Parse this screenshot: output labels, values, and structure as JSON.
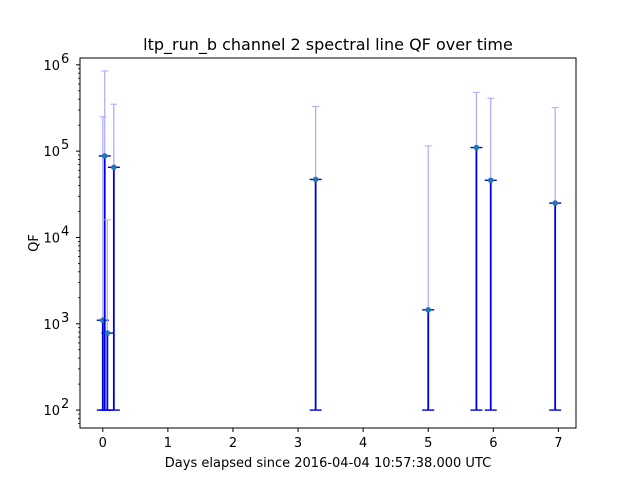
{
  "chart_data": {
    "type": "scatter",
    "title": "ltp_run_b channel 2 spectral line QF over time",
    "xlabel": "Days elapsed since 2016-04-04 10:57:38.000 UTC",
    "ylabel": "QF",
    "yscale": "log",
    "xlim": [
      -0.35,
      7.27
    ],
    "ylim": [
      62,
      1200000
    ],
    "x_ticks": [
      0,
      1,
      2,
      3,
      4,
      5,
      6,
      7
    ],
    "x_tick_labels": [
      "0",
      "1",
      "2",
      "3",
      "4",
      "5",
      "6",
      "7"
    ],
    "y_ticks": [
      100,
      1000,
      10000,
      100000,
      1000000
    ],
    "y_tick_labels": [
      "10",
      "10",
      "10",
      "10",
      "10"
    ],
    "y_tick_exponents": [
      "2",
      "3",
      "4",
      "5",
      "6"
    ],
    "grid": false,
    "marker_color": "#1f77b4",
    "lower_error_color": "#0000dd",
    "upper_error_color": "#aaaaff",
    "points": [
      {
        "x": 0.0,
        "y": 1100,
        "y_low": 100,
        "y_high": 250000
      },
      {
        "x": 0.03,
        "y": 88000,
        "y_low": 100,
        "y_high": 850000
      },
      {
        "x": 0.07,
        "y": 780,
        "y_low": 100,
        "y_high": 16000
      },
      {
        "x": 0.17,
        "y": 65000,
        "y_low": 100,
        "y_high": 350000
      },
      {
        "x": 3.27,
        "y": 47000,
        "y_low": 100,
        "y_high": 330000
      },
      {
        "x": 5.0,
        "y": 1450,
        "y_low": 100,
        "y_high": 115000
      },
      {
        "x": 5.74,
        "y": 110000,
        "y_low": 100,
        "y_high": 480000
      },
      {
        "x": 5.96,
        "y": 46000,
        "y_low": 100,
        "y_high": 410000
      },
      {
        "x": 6.95,
        "y": 25000,
        "y_low": 100,
        "y_high": 320000
      }
    ]
  }
}
